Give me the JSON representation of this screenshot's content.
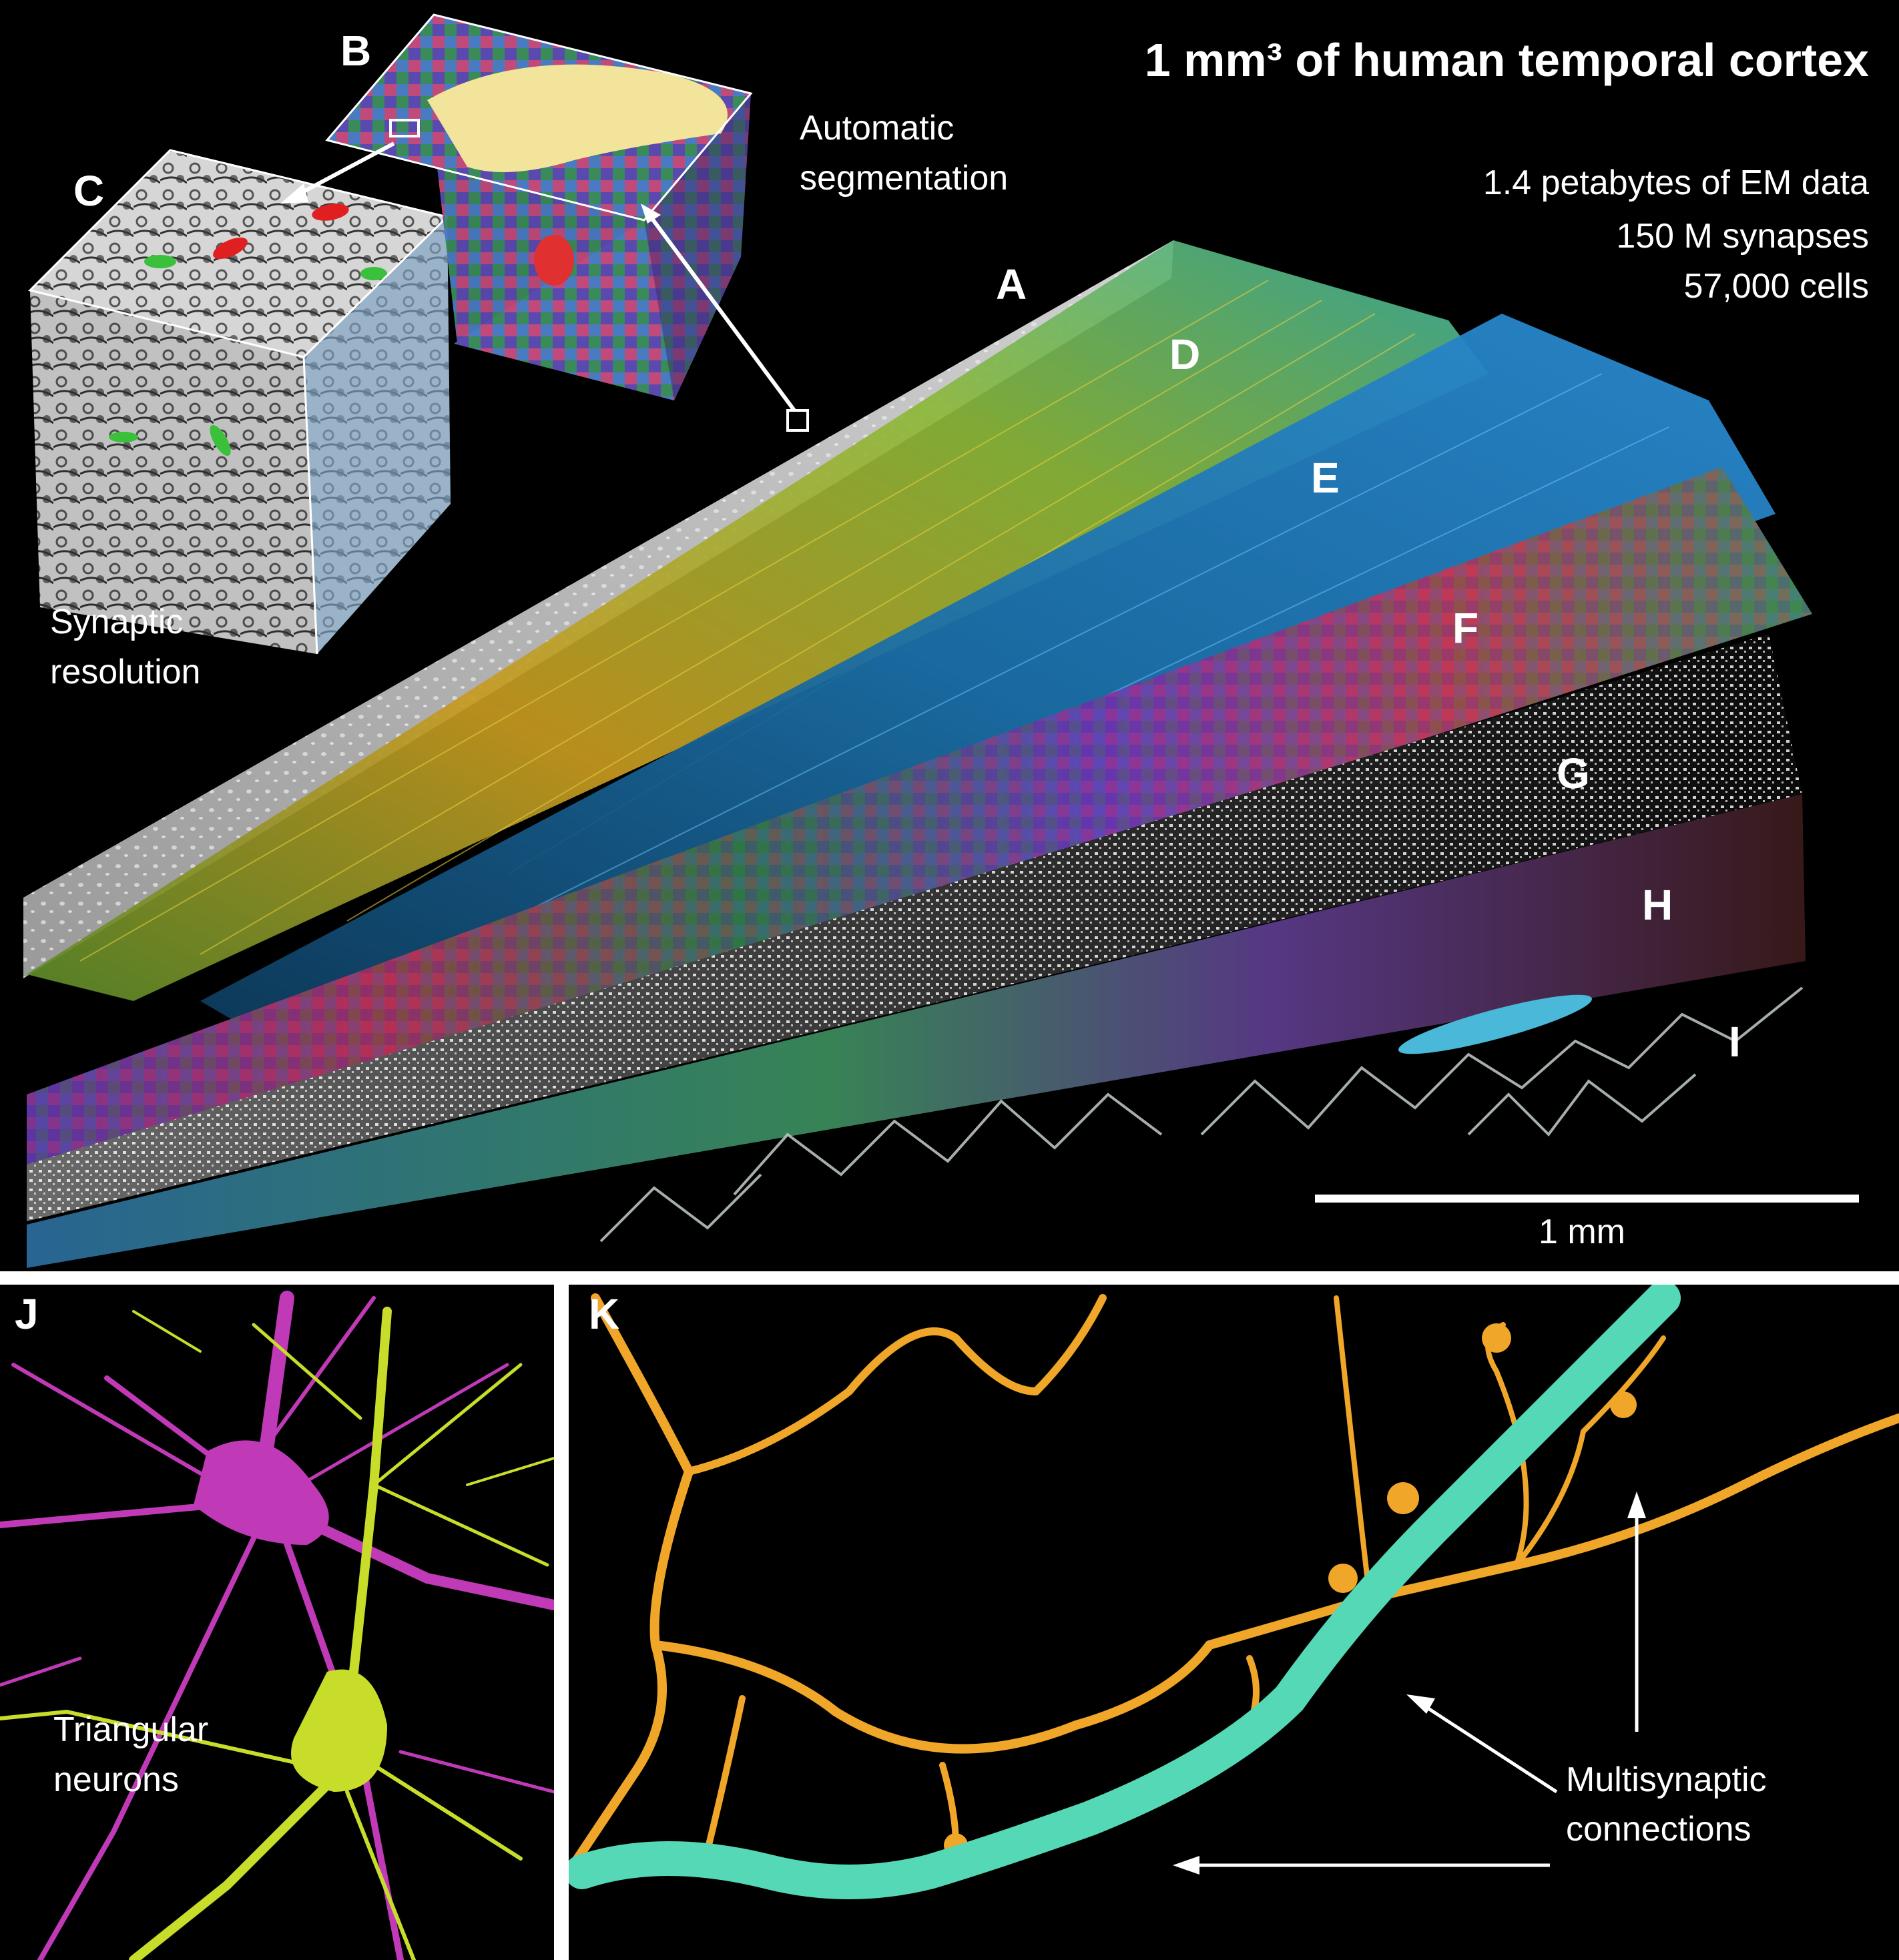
{
  "title": "1 mm³ of human temporal cortex",
  "stats": [
    "1.4 petabytes of EM data",
    "150 M synapses",
    "57,000 cells"
  ],
  "panel_letters": {
    "A": "A",
    "B": "B",
    "C": "C",
    "D": "D",
    "E": "E",
    "F": "F",
    "G": "G",
    "H": "H",
    "I": "I",
    "J": "J",
    "K": "K"
  },
  "labels": {
    "automatic": "Automatic",
    "segmentation": "segmentation",
    "synaptic": "Synaptic",
    "resolution": "resolution",
    "triangular": "Triangular",
    "neurons": "neurons",
    "multisynaptic": "Multisynaptic",
    "connections": "connections"
  },
  "scale_bar_label": "1 mm",
  "colors": {
    "background": "#000000",
    "em_gray": "#c8c8c8",
    "segmentation_yellow": "#f2e49a",
    "neuron_magenta": "#c03ab8",
    "neuron_yellow_green": "#c8dd2a",
    "axon_orange": "#f0a628",
    "dendrite_teal": "#55d8b6",
    "divider": "#ffffff"
  }
}
